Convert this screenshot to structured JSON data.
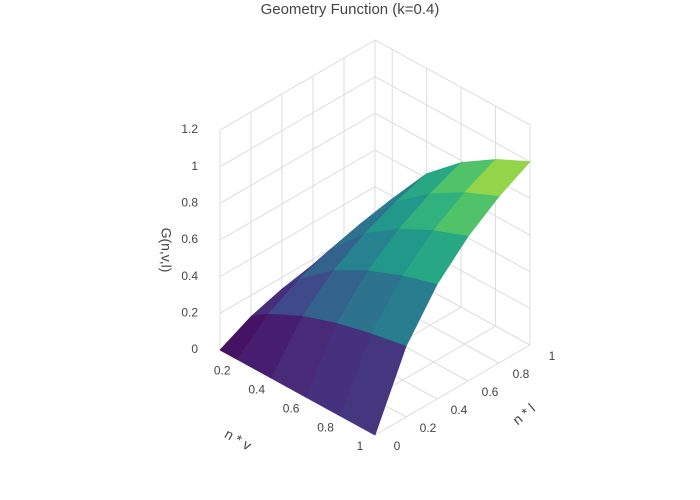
{
  "chart_data": {
    "type": "surface",
    "title": "Geometry Function (k=0.4)",
    "xlabel": "n * v",
    "ylabel": "n * l",
    "zlabel": "G(n,v,l)",
    "x": [
      0.1,
      0.2,
      0.4,
      0.6,
      0.8,
      1
    ],
    "y": [
      0,
      0.2,
      0.4,
      0.6,
      0.8,
      1
    ],
    "z": [
      [
        0,
        0.084,
        0.136,
        0.171,
        0.197,
        0.217
      ],
      [
        0,
        0.148,
        0.24,
        0.304,
        0.35,
        0.385
      ],
      [
        0,
        0.24,
        0.391,
        0.493,
        0.568,
        0.625
      ],
      [
        0,
        0.304,
        0.493,
        0.623,
        0.717,
        0.789
      ],
      [
        0,
        0.35,
        0.568,
        0.717,
        0.826,
        0.909
      ],
      [
        0,
        0.385,
        0.625,
        0.789,
        0.909,
        1
      ]
    ],
    "colorscale": "Viridis",
    "xlim": [
      0.1,
      1
    ],
    "ylim": [
      0,
      1
    ],
    "zlim": [
      0,
      1.2
    ],
    "xticks": [
      0.2,
      0.4,
      0.6,
      0.8,
      1
    ],
    "yticks": [
      0,
      0.2,
      0.4,
      0.6,
      0.8,
      1
    ],
    "zticks": [
      0,
      0.2,
      0.4,
      0.6,
      0.8,
      1,
      1.2
    ],
    "grid": true
  }
}
